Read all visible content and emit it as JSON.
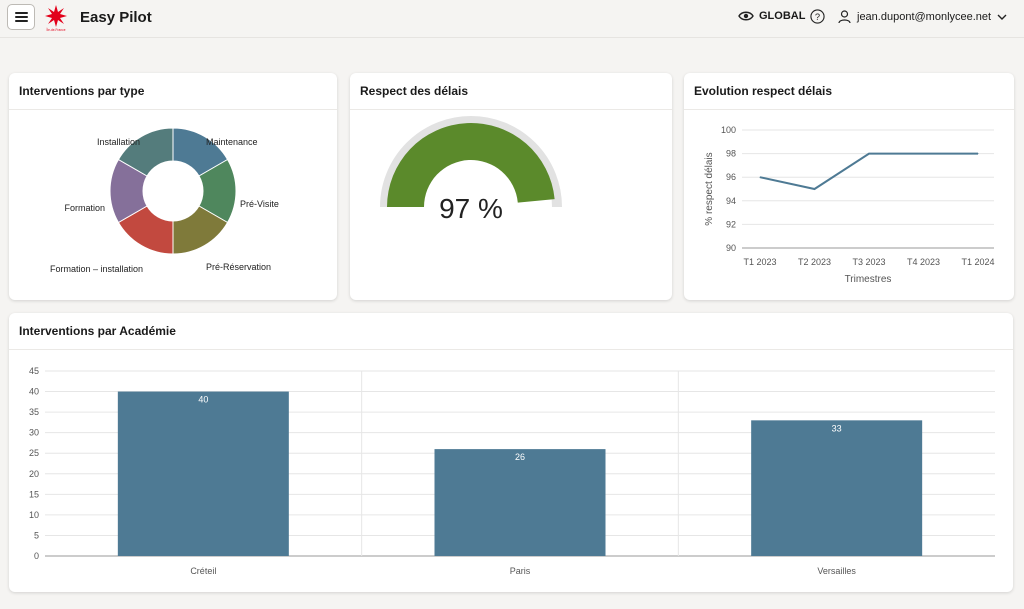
{
  "header": {
    "app_title": "Easy Pilot",
    "logo_text": "Île-de-France",
    "scope_label": "GLOBAL",
    "user_email": "jean.dupont@monlycee.net"
  },
  "colors": {
    "primary": "#4e7a94",
    "gauge_fill": "#5b8a2b",
    "gauge_track": "#e2e2e2",
    "brand_red": "#e2001a"
  },
  "cards": {
    "interventions_type": "Interventions par type",
    "respect_delais": "Respect des délais",
    "evolution": "Evolution respect délais",
    "academie": "Interventions par Académie"
  },
  "gauge": {
    "value": 97,
    "max": 100,
    "display": "97 %"
  },
  "chart_data": [
    {
      "type": "pie",
      "title": "Interventions par type",
      "categories": [
        "Maintenance",
        "Pré-Visite",
        "Pré-Réservation",
        "Formation – installation",
        "Formation",
        "Installation"
      ],
      "values": [
        1,
        1,
        1,
        1,
        1,
        1
      ],
      "colors": [
        "#4e7a94",
        "#4f875d",
        "#7f7a3a",
        "#c2493f",
        "#85709a",
        "#547c7c"
      ]
    },
    {
      "type": "line",
      "title": "Evolution respect délais",
      "x": [
        "T1 2023",
        "T2 2023",
        "T3 2023",
        "T4 2023",
        "T1 2024"
      ],
      "values": [
        96,
        95,
        98,
        98,
        98
      ],
      "xlabel": "Trimestres",
      "ylabel": "% respect délais",
      "ylim": [
        90,
        100
      ],
      "yticks": [
        90,
        92,
        94,
        96,
        98,
        100
      ],
      "grid": true
    },
    {
      "type": "bar",
      "title": "Interventions par Académie",
      "categories": [
        "Créteil",
        "Paris",
        "Versailles"
      ],
      "values": [
        40,
        26,
        33
      ],
      "ylim": [
        0,
        45
      ],
      "yticks": [
        0,
        5,
        10,
        15,
        20,
        25,
        30,
        35,
        40,
        45
      ],
      "grid": true
    }
  ]
}
